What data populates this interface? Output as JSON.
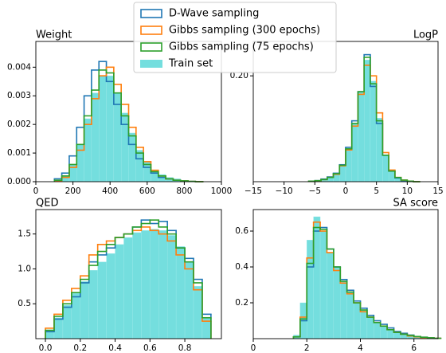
{
  "chart_data": [
    {
      "type": "histogram",
      "title": "Weight",
      "title_loc": "left",
      "bins": [
        100,
        140,
        180,
        220,
        260,
        300,
        340,
        380,
        420,
        460,
        500,
        540,
        580,
        620,
        660,
        700,
        740,
        780,
        820,
        860,
        900
      ],
      "series": [
        {
          "name": "D-Wave sampling",
          "color": "#1f77b4",
          "style": "step",
          "values": [
            0.0001,
            0.0003,
            0.0009,
            0.0019,
            0.003,
            0.0039,
            0.0042,
            0.0035,
            0.0027,
            0.002,
            0.0013,
            0.0008,
            0.0005,
            0.0003,
            0.00015,
            0.0001,
            5e-05,
            3e-05,
            1e-05,
            0
          ]
        },
        {
          "name": "Gibbs sampling (300 epochs)",
          "color": "#ff7f0e",
          "style": "step",
          "values": [
            3e-05,
            0.00015,
            0.0005,
            0.0011,
            0.002,
            0.0029,
            0.0037,
            0.004,
            0.0034,
            0.0027,
            0.0019,
            0.0012,
            0.0007,
            0.0004,
            0.0002,
            0.0001,
            5e-05,
            3e-05,
            1e-05,
            0
          ]
        },
        {
          "name": "Gibbs sampling (75 epochs)",
          "color": "#2ca02c",
          "style": "step",
          "values": [
            5e-05,
            0.0002,
            0.0006,
            0.0013,
            0.0023,
            0.0032,
            0.0039,
            0.0038,
            0.0031,
            0.0023,
            0.0016,
            0.001,
            0.0006,
            0.00035,
            0.0002,
            0.0001,
            5e-05,
            3e-05,
            1e-05,
            0
          ]
        },
        {
          "name": "Train set",
          "color": "#74dede",
          "style": "bar",
          "values": [
            5e-05,
            0.0002,
            0.0006,
            0.0013,
            0.0022,
            0.0031,
            0.0037,
            0.0037,
            0.0031,
            0.0024,
            0.0017,
            0.0011,
            0.0007,
            0.0004,
            0.00025,
            0.00015,
            0.0001,
            5e-05,
            3e-05,
            1e-05
          ]
        }
      ],
      "xlim": [
        0,
        1000
      ],
      "xticks": [
        0,
        200,
        400,
        600,
        800,
        1000
      ],
      "ylim": [
        0,
        0.0049
      ],
      "yticks": [
        {
          "value": 0,
          "label": "0.000"
        },
        {
          "value": 0.001,
          "label": "0.001"
        },
        {
          "value": 0.002,
          "label": "0.002"
        },
        {
          "value": 0.003,
          "label": "0.003"
        },
        {
          "value": 0.004,
          "label": "0.004"
        }
      ]
    },
    {
      "type": "histogram",
      "title": "LogP",
      "title_loc": "right",
      "bins": [
        -6,
        -5,
        -4,
        -3,
        -2,
        -1,
        0,
        1,
        2,
        3,
        4,
        5,
        6,
        7,
        8,
        9,
        10,
        11,
        12
      ],
      "series": [
        {
          "name": "D-Wave sampling",
          "color": "#1f77b4",
          "style": "step",
          "values": [
            0.001,
            0.002,
            0.005,
            0.009,
            0.016,
            0.032,
            0.065,
            0.115,
            0.17,
            0.24,
            0.18,
            0.11,
            0.05,
            0.02,
            0.007,
            0.002,
            0.001,
            0
          ]
        },
        {
          "name": "Gibbs sampling (300 epochs)",
          "color": "#ff7f0e",
          "style": "step",
          "values": [
            0.0005,
            0.0015,
            0.004,
            0.008,
            0.014,
            0.03,
            0.06,
            0.105,
            0.165,
            0.22,
            0.2,
            0.13,
            0.055,
            0.022,
            0.008,
            0.003,
            0.001,
            0
          ]
        },
        {
          "name": "Gibbs sampling (75 epochs)",
          "color": "#2ca02c",
          "style": "step",
          "values": [
            0.001,
            0.002,
            0.004,
            0.008,
            0.015,
            0.031,
            0.062,
            0.11,
            0.17,
            0.235,
            0.185,
            0.115,
            0.05,
            0.02,
            0.008,
            0.003,
            0.001,
            0
          ]
        },
        {
          "name": "Train set",
          "color": "#74dede",
          "style": "bar",
          "values": [
            0.001,
            0.002,
            0.004,
            0.008,
            0.015,
            0.03,
            0.06,
            0.11,
            0.17,
            0.23,
            0.19,
            0.12,
            0.05,
            0.02,
            0.008,
            0.003,
            0.001,
            0.0005
          ]
        }
      ],
      "xlim": [
        -15,
        15
      ],
      "xticks": [
        {
          "value": -15,
          "label": "−15"
        },
        {
          "value": -10,
          "label": "−10"
        },
        {
          "value": -5,
          "label": "−5"
        },
        0,
        5,
        10,
        15
      ],
      "ylim": [
        0,
        0.265
      ],
      "yticks": [
        {
          "value": 0.2,
          "label": "0.20"
        }
      ]
    },
    {
      "type": "histogram",
      "title": "QED",
      "title_loc": "left",
      "bins": [
        0,
        0.05,
        0.1,
        0.15,
        0.2,
        0.25,
        0.3,
        0.35,
        0.4,
        0.45,
        0.5,
        0.55,
        0.6,
        0.65,
        0.7,
        0.75,
        0.8,
        0.85,
        0.9,
        0.95
      ],
      "series": [
        {
          "name": "D-Wave sampling",
          "color": "#1f77b4",
          "style": "step",
          "values": [
            0.1,
            0.28,
            0.45,
            0.6,
            0.8,
            1.1,
            1.2,
            1.3,
            1.45,
            1.5,
            1.6,
            1.7,
            1.65,
            1.68,
            1.55,
            1.3,
            1.15,
            0.85,
            0.35
          ]
        },
        {
          "name": "Gibbs sampling (300 epochs)",
          "color": "#ff7f0e",
          "style": "step",
          "values": [
            0.15,
            0.35,
            0.55,
            0.72,
            0.9,
            1.2,
            1.35,
            1.4,
            1.45,
            1.5,
            1.55,
            1.6,
            1.55,
            1.5,
            1.4,
            1.2,
            1.0,
            0.7,
            0.25
          ]
        },
        {
          "name": "Gibbs sampling (75 epochs)",
          "color": "#2ca02c",
          "style": "step",
          "values": [
            0.12,
            0.32,
            0.5,
            0.66,
            0.85,
            1.05,
            1.25,
            1.35,
            1.45,
            1.5,
            1.6,
            1.65,
            1.7,
            1.6,
            1.5,
            1.3,
            1.1,
            0.8,
            0.3
          ]
        },
        {
          "name": "Train set",
          "color": "#74dede",
          "style": "bar",
          "values": [
            0.12,
            0.3,
            0.48,
            0.65,
            0.82,
            0.98,
            1.1,
            1.22,
            1.35,
            1.45,
            1.52,
            1.55,
            1.57,
            1.55,
            1.48,
            1.32,
            1.1,
            0.75,
            0.3
          ]
        }
      ],
      "xlim": [
        -0.055,
        1.01
      ],
      "xticks": [
        {
          "value": 0,
          "label": "0.0"
        },
        0.2,
        0.4,
        0.6,
        0.8
      ],
      "ylim": [
        0,
        1.85
      ],
      "yticks": [
        0.5,
        {
          "value": 1,
          "label": "1.0"
        },
        1.5
      ]
    },
    {
      "type": "histogram",
      "title": "SA score",
      "title_loc": "right",
      "bins": [
        1.5,
        1.75,
        2,
        2.25,
        2.5,
        2.75,
        3,
        3.25,
        3.5,
        3.75,
        4,
        4.25,
        4.5,
        4.75,
        5,
        5.25,
        5.5,
        5.75,
        6,
        6.25,
        6.5,
        6.75,
        7
      ],
      "series": [
        {
          "name": "D-Wave sampling",
          "color": "#1f77b4",
          "style": "step",
          "values": [
            0.01,
            0.1,
            0.4,
            0.6,
            0.62,
            0.5,
            0.4,
            0.33,
            0.27,
            0.21,
            0.17,
            0.13,
            0.1,
            0.08,
            0.06,
            0.04,
            0.03,
            0.02,
            0.012,
            0.008,
            0.005,
            0.002
          ]
        },
        {
          "name": "Gibbs sampling (300 epochs)",
          "color": "#ff7f0e",
          "style": "step",
          "values": [
            0.01,
            0.12,
            0.45,
            0.65,
            0.6,
            0.48,
            0.38,
            0.31,
            0.25,
            0.2,
            0.15,
            0.12,
            0.09,
            0.07,
            0.05,
            0.035,
            0.025,
            0.015,
            0.01,
            0.006,
            0.004,
            0.002
          ]
        },
        {
          "name": "Gibbs sampling (75 epochs)",
          "color": "#2ca02c",
          "style": "step",
          "values": [
            0.01,
            0.11,
            0.42,
            0.62,
            0.61,
            0.5,
            0.4,
            0.32,
            0.26,
            0.2,
            0.16,
            0.12,
            0.09,
            0.07,
            0.05,
            0.035,
            0.025,
            0.018,
            0.012,
            0.008,
            0.005,
            0.002
          ]
        },
        {
          "name": "Train set",
          "color": "#74dede",
          "style": "bar",
          "values": [
            0.02,
            0.2,
            0.55,
            0.68,
            0.6,
            0.48,
            0.4,
            0.32,
            0.26,
            0.2,
            0.16,
            0.12,
            0.09,
            0.07,
            0.05,
            0.035,
            0.025,
            0.018,
            0.012,
            0.008,
            0.005,
            0.003
          ]
        }
      ],
      "xlim": [
        0,
        6.9
      ],
      "xticks": [
        0,
        2,
        4,
        6
      ],
      "ylim": [
        0,
        0.72
      ],
      "yticks": [
        0.2,
        0.4,
        0.6
      ]
    }
  ]
}
